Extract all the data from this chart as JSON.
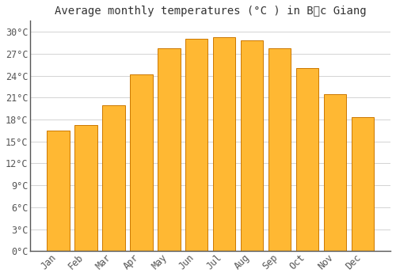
{
  "title": "Average monthly temperatures (°C ) in Bắc Giang",
  "months": [
    "Jan",
    "Feb",
    "Mar",
    "Apr",
    "May",
    "Jun",
    "Jul",
    "Aug",
    "Sep",
    "Oct",
    "Nov",
    "Dec"
  ],
  "temperatures": [
    16.5,
    17.2,
    20.0,
    24.2,
    27.7,
    29.0,
    29.3,
    28.8,
    27.7,
    25.0,
    21.5,
    18.3
  ],
  "bar_color": "#FFA500",
  "bar_edge_color": "#CC7700",
  "background_color": "#FFFFFF",
  "grid_color": "#CCCCCC",
  "yticks": [
    0,
    3,
    6,
    9,
    12,
    15,
    18,
    21,
    24,
    27,
    30
  ],
  "ylim": [
    0,
    31.5
  ],
  "title_fontsize": 10,
  "tick_fontsize": 8.5,
  "bar_width": 0.82
}
